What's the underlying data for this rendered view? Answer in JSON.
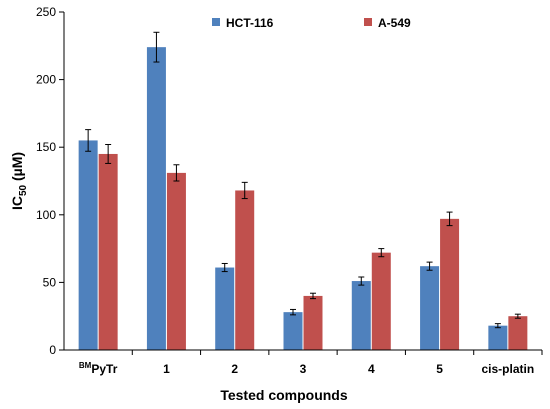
{
  "chart_data": {
    "type": "bar",
    "categories": [
      "PyTr",
      "1",
      "2",
      "3",
      "4",
      "5",
      "cis-platin"
    ],
    "category_superscript": {
      "index": 0,
      "text": "BM"
    },
    "series": [
      {
        "name": "HCT-116",
        "color": "#4f81bd",
        "values": [
          155,
          224,
          61,
          28,
          51,
          62,
          18
        ],
        "errors": [
          8,
          11,
          3,
          2,
          3,
          3,
          1.5
        ]
      },
      {
        "name": "A-549",
        "color": "#c0504d",
        "values": [
          145,
          131,
          118,
          40,
          72,
          97,
          25
        ],
        "errors": [
          7,
          6,
          6,
          2,
          3,
          5,
          1.5
        ]
      }
    ],
    "ylabel_base": "IC",
    "ylabel_sub": "50",
    "ylabel_unit": " (µM)",
    "xlabel": "Tested compounds",
    "ylim": [
      0,
      250
    ],
    "yticks": [
      0,
      50,
      100,
      150,
      200,
      250
    ],
    "legend_position": "top",
    "grid": false
  }
}
